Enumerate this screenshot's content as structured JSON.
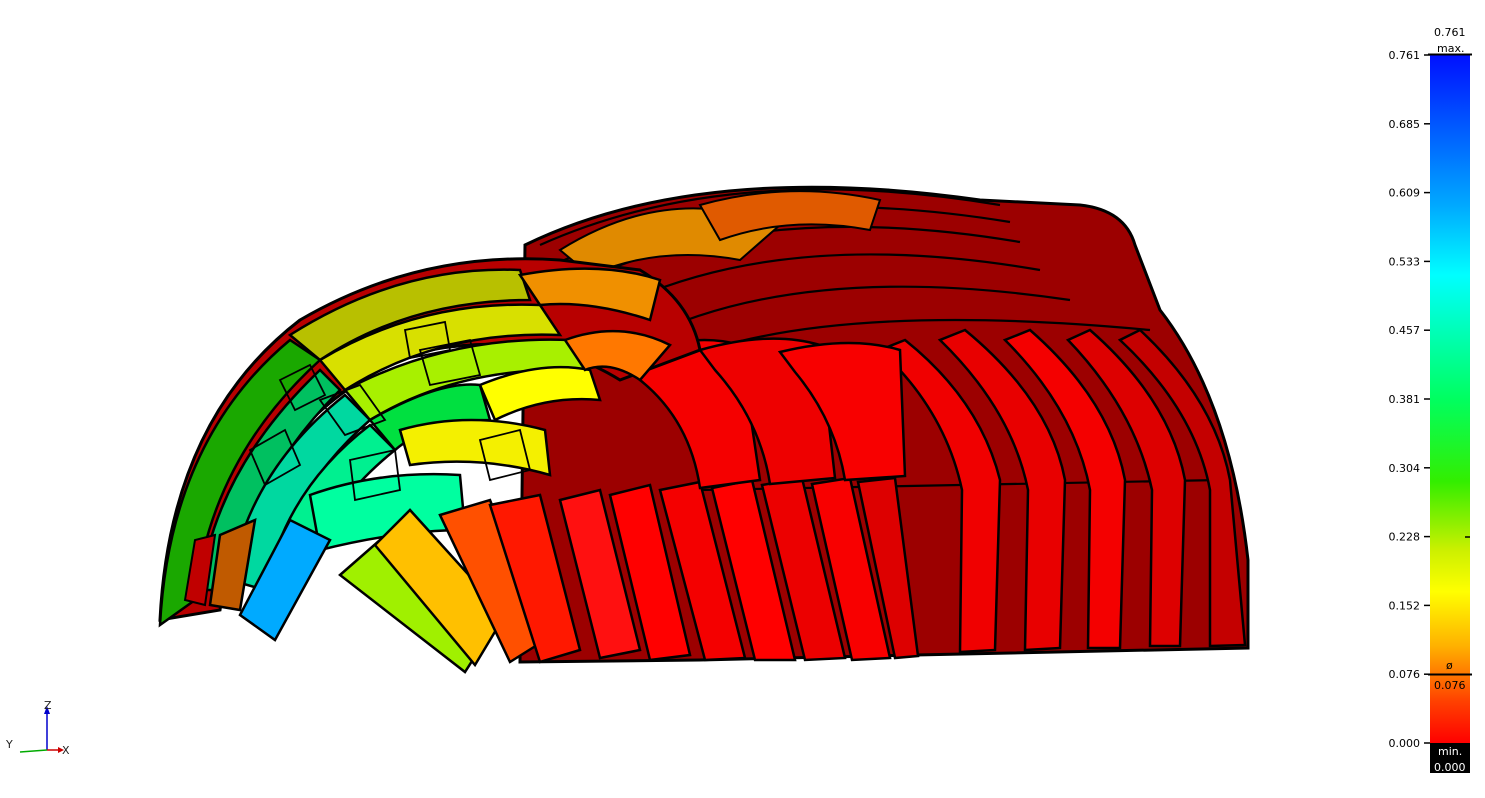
{
  "legend": {
    "max_caption": "max.",
    "max_value": "0.761",
    "min_caption": "min.",
    "min_value": "0.000",
    "avg_caption": "ø",
    "avg_value": "0.076",
    "ticks": [
      "0.761",
      "0.685",
      "0.609",
      "0.533",
      "0.457",
      "0.381",
      "0.304",
      "0.228",
      "0.152",
      "0.076",
      "0.000"
    ],
    "colors": {
      "max": "#0000ff",
      "high": "#00ffff",
      "mid": "#00ff00",
      "low": "#ffff00",
      "min": "#ff0000"
    }
  },
  "triad": {
    "z": "Z",
    "y": "Y",
    "x": "X"
  },
  "model": {
    "base_color": "#e8000a",
    "shade_color": "#a00000",
    "outline_color": "#000000"
  }
}
